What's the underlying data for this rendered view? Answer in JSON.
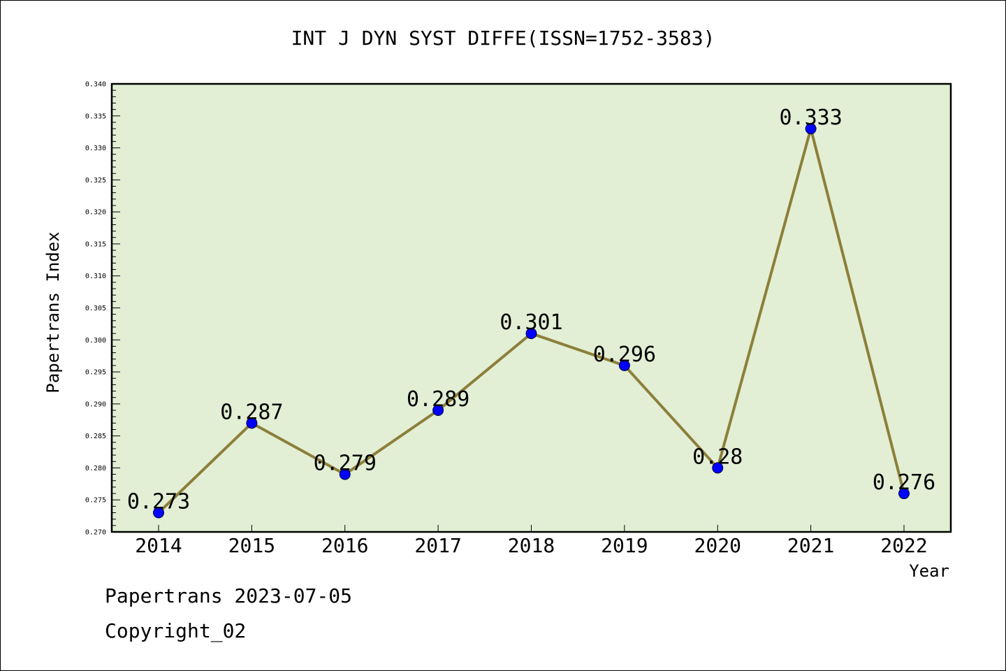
{
  "chart_data": {
    "type": "line",
    "title": "INT J DYN SYST DIFFE(ISSN=1752-3583)",
    "xlabel": "Year",
    "ylabel": "Papertrans Index",
    "categories": [
      "2014",
      "2015",
      "2016",
      "2017",
      "2018",
      "2019",
      "2020",
      "2021",
      "2022"
    ],
    "series": [
      {
        "values": [
          0.273,
          0.287,
          0.279,
          0.289,
          0.301,
          0.296,
          0.28,
          0.333,
          0.276
        ]
      }
    ],
    "data_labels": [
      "0.273",
      "0.287",
      "0.279",
      "0.289",
      "0.301",
      "0.296",
      "0.28",
      "0.333",
      "0.276"
    ],
    "ylim": [
      0.27,
      0.34
    ],
    "y_ticks": [
      "0.270",
      "0.275",
      "0.280",
      "0.285",
      "0.290",
      "0.295",
      "0.300",
      "0.305",
      "0.310",
      "0.315",
      "0.320",
      "0.325",
      "0.330",
      "0.335",
      "0.340"
    ],
    "grid": false,
    "legend": "none",
    "colors": {
      "plot_background": "#e2efd5",
      "line": "#8c7f3a",
      "marker": "#0000ff"
    }
  },
  "footer": {
    "source": "Papertrans 2023-07-05",
    "copyright": "Copyright_02"
  }
}
